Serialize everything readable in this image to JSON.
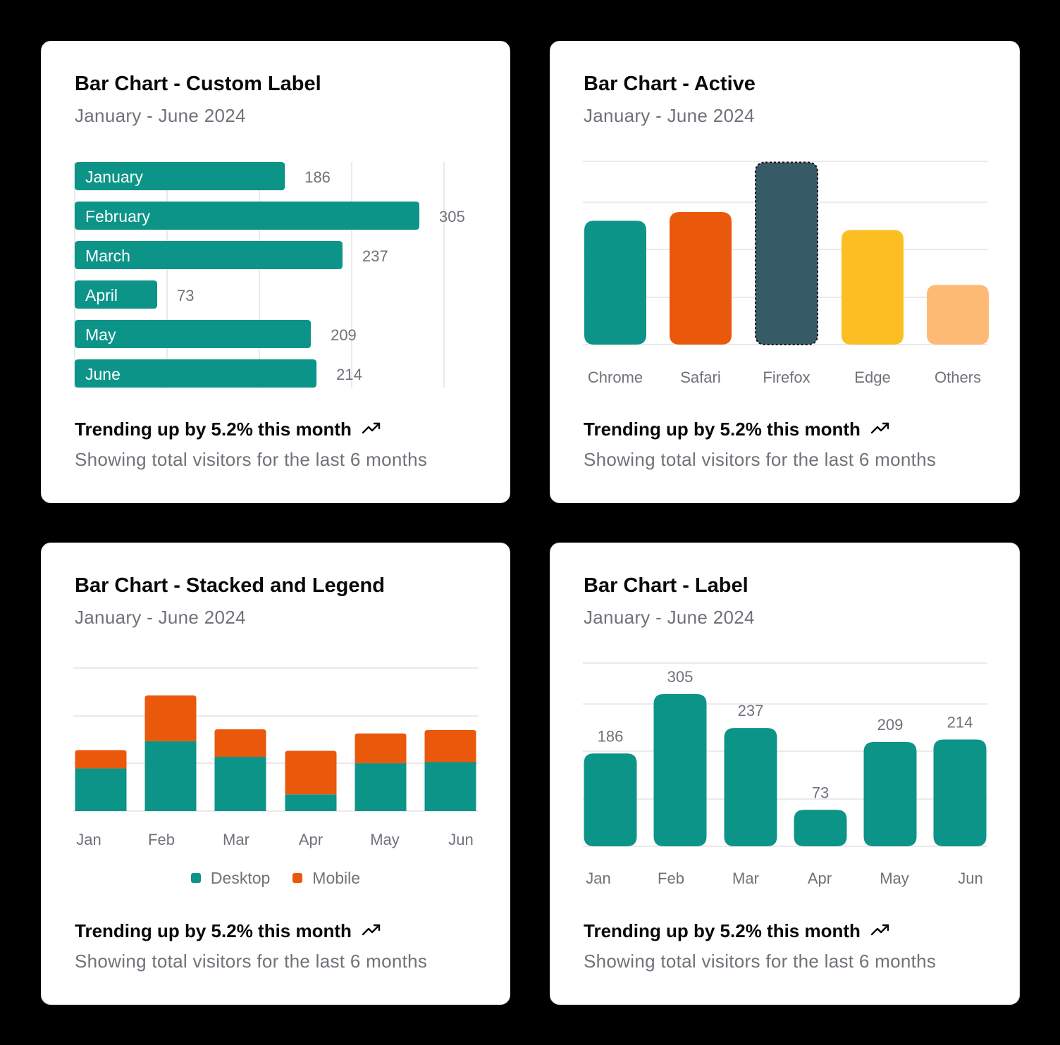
{
  "colors": {
    "teal": "#0d9488",
    "orange": "#ea580c",
    "slate": "#375a67",
    "yellow": "#fbbf24",
    "light_orange": "#fdba74",
    "grid": "#e4e4e7",
    "muted": "#71717a"
  },
  "cards": [
    {
      "title": "Bar Chart - Custom Label",
      "subtitle": "January - June 2024",
      "trend": "Trending up by 5.2% this month",
      "trend_icon": "trending-up-icon",
      "note": "Showing total visitors for the last 6 months"
    },
    {
      "title": "Bar Chart - Active",
      "subtitle": "January - June 2024",
      "trend": "Trending up by 5.2% this month",
      "trend_icon": "trending-up-icon",
      "note": "Showing total visitors for the last 6 months"
    },
    {
      "title": "Bar Chart - Stacked and Legend",
      "subtitle": "January - June 2024",
      "trend": "Trending up by 5.2% this month",
      "trend_icon": "trending-up-icon",
      "note": "Showing total visitors for the last 6 months"
    },
    {
      "title": "Bar Chart - Label",
      "subtitle": "January - June 2024",
      "trend": "Trending up by 5.2% this month",
      "trend_icon": "trending-up-icon",
      "note": "Showing total visitors for the last 6 months"
    }
  ],
  "chart_data": [
    {
      "type": "bar",
      "orientation": "horizontal",
      "categories": [
        "January",
        "February",
        "March",
        "April",
        "May",
        "June"
      ],
      "values": [
        186,
        305,
        237,
        73,
        209,
        214
      ],
      "color": "#0d9488",
      "grid": "vertical",
      "labels_inside": true,
      "data_labels": true
    },
    {
      "type": "bar",
      "categories": [
        "Chrome",
        "Safari",
        "Firefox",
        "Edge",
        "Others"
      ],
      "values": [
        187,
        200,
        275,
        173,
        90
      ],
      "colors": [
        "#0d9488",
        "#ea580c",
        "#375a67",
        "#fbbf24",
        "#fdba74"
      ],
      "active_index": 2,
      "grid": "horizontal"
    },
    {
      "type": "bar",
      "stacked": true,
      "categories": [
        "Jan",
        "Feb",
        "Mar",
        "Apr",
        "May",
        "Jun"
      ],
      "series": [
        {
          "name": "Desktop",
          "values": [
            186,
            305,
            237,
            73,
            209,
            214
          ],
          "color": "#0d9488"
        },
        {
          "name": "Mobile",
          "values": [
            80,
            200,
            120,
            190,
            130,
            140
          ],
          "color": "#ea580c"
        }
      ],
      "legend": "bottom",
      "grid": "horizontal"
    },
    {
      "type": "bar",
      "categories": [
        "Jan",
        "Feb",
        "Mar",
        "Apr",
        "May",
        "Jun"
      ],
      "values": [
        186,
        305,
        237,
        73,
        209,
        214
      ],
      "color": "#0d9488",
      "data_labels": true,
      "grid": "horizontal"
    }
  ]
}
